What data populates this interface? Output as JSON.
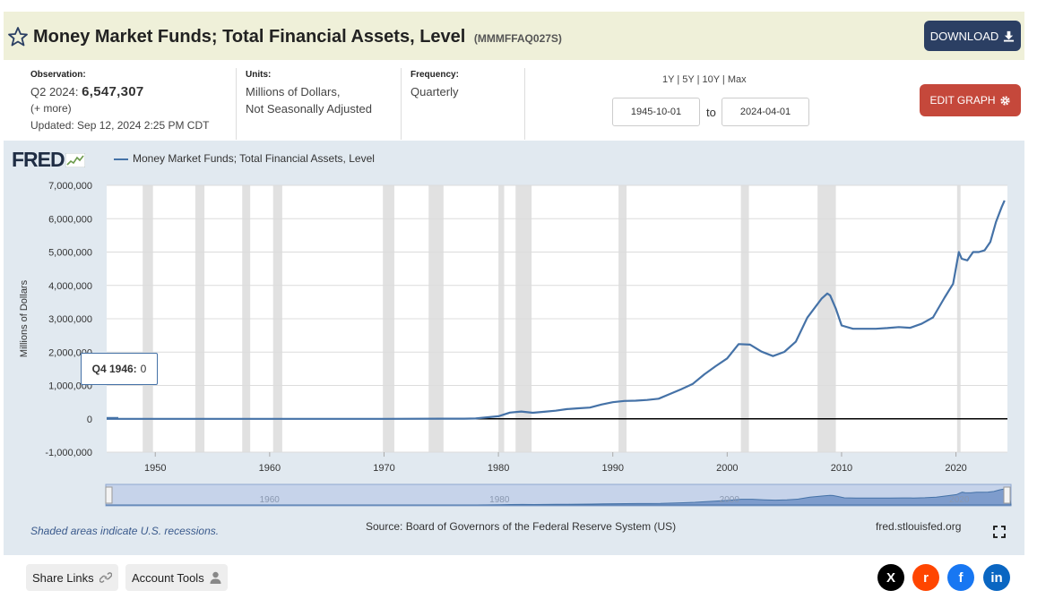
{
  "header": {
    "title": "Money Market Funds; Total Financial Assets, Level",
    "series_id": "(MMMFFAQ027S)",
    "download_label": "DOWNLOAD"
  },
  "meta": {
    "observation_label": "Observation:",
    "observation_period": "Q2 2024:",
    "observation_value": "6,547,307",
    "more": "(+ more)",
    "updated": "Updated: Sep 12, 2024 2:25 PM CDT",
    "units_label": "Units:",
    "units_line1": "Millions of Dollars,",
    "units_line2": "Not Seasonally Adjusted",
    "frequency_label": "Frequency:",
    "frequency_value": "Quarterly"
  },
  "range": {
    "links": [
      "1Y",
      "5Y",
      "10Y",
      "Max"
    ],
    "start": "1945-10-01",
    "to_label": "to",
    "end": "2024-04-01",
    "edit_label": "EDIT GRAPH"
  },
  "chart_panel": {
    "logo": "FRED",
    "legend": "Money Market Funds; Total Financial Assets, Level",
    "recession_note": "Shaded areas indicate U.S. recessions.",
    "source": "Source: Board of Governors of the Federal Reserve System (US)",
    "site": "fred.stlouisfed.org",
    "tooltip_label": "Q4 1946:",
    "tooltip_value": "0"
  },
  "footer": {
    "share_label": "Share Links",
    "account_label": "Account Tools",
    "social": [
      {
        "name": "x",
        "glyph": "X",
        "color": "#000000"
      },
      {
        "name": "reddit",
        "glyph": "r",
        "color": "#ff4500"
      },
      {
        "name": "facebook",
        "glyph": "f",
        "color": "#1877f2"
      },
      {
        "name": "linkedin",
        "glyph": "in",
        "color": "#0a66c2"
      }
    ]
  },
  "colors": {
    "series": "#4572a7",
    "recession": "#e1e1e1",
    "header_bg": "#eff0d9",
    "panel_bg": "#e1e9f0"
  },
  "chart_data": {
    "type": "line",
    "title": "",
    "xlabel": "",
    "ylabel": "Millions of Dollars",
    "xlim": [
      1945.75,
      2024.5
    ],
    "ylim": [
      -1000000,
      7000000
    ],
    "y_ticks": [
      -1000000,
      0,
      1000000,
      2000000,
      3000000,
      4000000,
      5000000,
      6000000,
      7000000
    ],
    "y_tick_labels": [
      "-1,000,000",
      "0",
      "1,000,000",
      "2,000,000",
      "3,000,000",
      "4,000,000",
      "5,000,000",
      "6,000,000",
      "7,000,000"
    ],
    "x_ticks": [
      1950,
      1960,
      1970,
      1980,
      1990,
      2000,
      2010,
      2020
    ],
    "x_tick_labels": [
      "1950",
      "1960",
      "1970",
      "1980",
      "1990",
      "2000",
      "2010",
      "2020"
    ],
    "grid": true,
    "recessions": [
      [
        1948.9,
        1949.8
      ],
      [
        1953.5,
        1954.3
      ],
      [
        1957.6,
        1958.3
      ],
      [
        1960.3,
        1961.1
      ],
      [
        1969.9,
        1970.9
      ],
      [
        1973.9,
        1975.2
      ],
      [
        1980.0,
        1980.5
      ],
      [
        1981.5,
        1982.9
      ],
      [
        1990.5,
        1991.2
      ],
      [
        2001.2,
        2001.9
      ],
      [
        2007.9,
        2009.5
      ],
      [
        2020.1,
        2020.4
      ]
    ],
    "navigator_ticks": [
      "1960",
      "1980",
      "2000",
      "2020"
    ],
    "series": [
      {
        "name": "Money Market Funds; Total Financial Assets, Level",
        "points": [
          [
            1945.75,
            0
          ],
          [
            1946.75,
            0
          ],
          [
            1950,
            0
          ],
          [
            1960,
            0
          ],
          [
            1970,
            0
          ],
          [
            1975,
            3000
          ],
          [
            1977,
            4000
          ],
          [
            1978,
            10000
          ],
          [
            1979,
            45000
          ],
          [
            1980,
            76000
          ],
          [
            1981,
            186000
          ],
          [
            1982,
            220000
          ],
          [
            1983,
            180000
          ],
          [
            1984,
            210000
          ],
          [
            1985,
            243000
          ],
          [
            1986,
            292000
          ],
          [
            1987,
            316000
          ],
          [
            1988,
            338000
          ],
          [
            1989,
            428000
          ],
          [
            1990,
            498000
          ],
          [
            1991,
            535000
          ],
          [
            1992,
            543000
          ],
          [
            1993,
            565000
          ],
          [
            1994,
            602000
          ],
          [
            1995,
            745000
          ],
          [
            1996,
            891000
          ],
          [
            1997,
            1048000
          ],
          [
            1998,
            1333000
          ],
          [
            1999,
            1579000
          ],
          [
            2000,
            1812000
          ],
          [
            2001,
            2240000
          ],
          [
            2002,
            2223000
          ],
          [
            2003,
            2016000
          ],
          [
            2004,
            1880000
          ],
          [
            2005,
            2007000
          ],
          [
            2006,
            2312000
          ],
          [
            2007,
            3033000
          ],
          [
            2008.25,
            3600000
          ],
          [
            2008.75,
            3757000
          ],
          [
            2009,
            3700000
          ],
          [
            2009.5,
            3300000
          ],
          [
            2010,
            2800000
          ],
          [
            2011,
            2700000
          ],
          [
            2012,
            2700000
          ],
          [
            2013,
            2700000
          ],
          [
            2014,
            2720000
          ],
          [
            2015,
            2750000
          ],
          [
            2016,
            2730000
          ],
          [
            2017,
            2850000
          ],
          [
            2018,
            3040000
          ],
          [
            2019,
            3630000
          ],
          [
            2019.75,
            4050000
          ],
          [
            2020.25,
            5000000
          ],
          [
            2020.5,
            4800000
          ],
          [
            2021,
            4750000
          ],
          [
            2021.5,
            5000000
          ],
          [
            2022,
            5000000
          ],
          [
            2022.5,
            5050000
          ],
          [
            2023,
            5300000
          ],
          [
            2023.5,
            5900000
          ],
          [
            2024,
            6350000
          ],
          [
            2024.25,
            6547307
          ]
        ]
      }
    ]
  }
}
